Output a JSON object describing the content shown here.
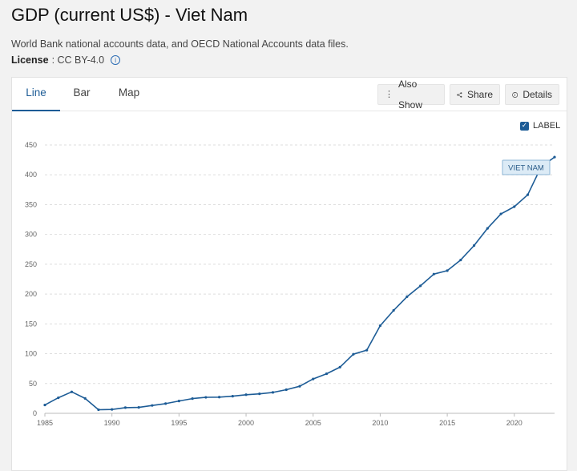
{
  "header": {
    "title": "GDP (current US$) - Viet Nam",
    "source": "World Bank national accounts data, and OECD National Accounts data files.",
    "license_label": "License",
    "license_value": ": CC BY-4.0"
  },
  "tabs": [
    {
      "label": "Line",
      "active": true
    },
    {
      "label": "Bar",
      "active": false
    },
    {
      "label": "Map",
      "active": false
    }
  ],
  "toolbar": {
    "also_show": "Also Show",
    "share": "Share",
    "details": "Details"
  },
  "label_toggle": "LABEL",
  "colors": {
    "line": "#1d5c96",
    "accent": "#1d5c96"
  },
  "chart_data": {
    "type": "line",
    "x": [
      1985,
      1986,
      1987,
      1988,
      1989,
      1990,
      1991,
      1992,
      1993,
      1994,
      1995,
      1996,
      1997,
      1998,
      1999,
      2000,
      2001,
      2002,
      2003,
      2004,
      2005,
      2006,
      2007,
      2008,
      2009,
      2010,
      2011,
      2012,
      2013,
      2014,
      2015,
      2016,
      2017,
      2018,
      2019,
      2020,
      2021,
      2022,
      2023
    ],
    "series": [
      {
        "name": "VIET NAM",
        "values": [
          14,
          26,
          36,
          25,
          6,
          6.5,
          9.6,
          9.9,
          13.2,
          16.3,
          20.7,
          24.7,
          26.8,
          27.2,
          28.7,
          31.2,
          32.7,
          35.1,
          39.6,
          45.4,
          57.6,
          66.4,
          77.4,
          99.1,
          106,
          147,
          172.6,
          195.6,
          213.7,
          233.5,
          239.3,
          257.1,
          281.4,
          310.1,
          334.4,
          346.6,
          366.5,
          413.4,
          429.7
        ]
      }
    ],
    "series_label": "VIET NAM",
    "xlabel": "",
    "ylabel": "",
    "ylim": [
      0,
      450
    ],
    "xlim": [
      1985,
      2023
    ],
    "y_ticks": [
      0,
      50,
      100,
      150,
      200,
      250,
      300,
      350,
      400,
      450
    ],
    "x_ticks": [
      1985,
      1990,
      1995,
      2000,
      2005,
      2010,
      2015,
      2020
    ],
    "grid": true
  }
}
